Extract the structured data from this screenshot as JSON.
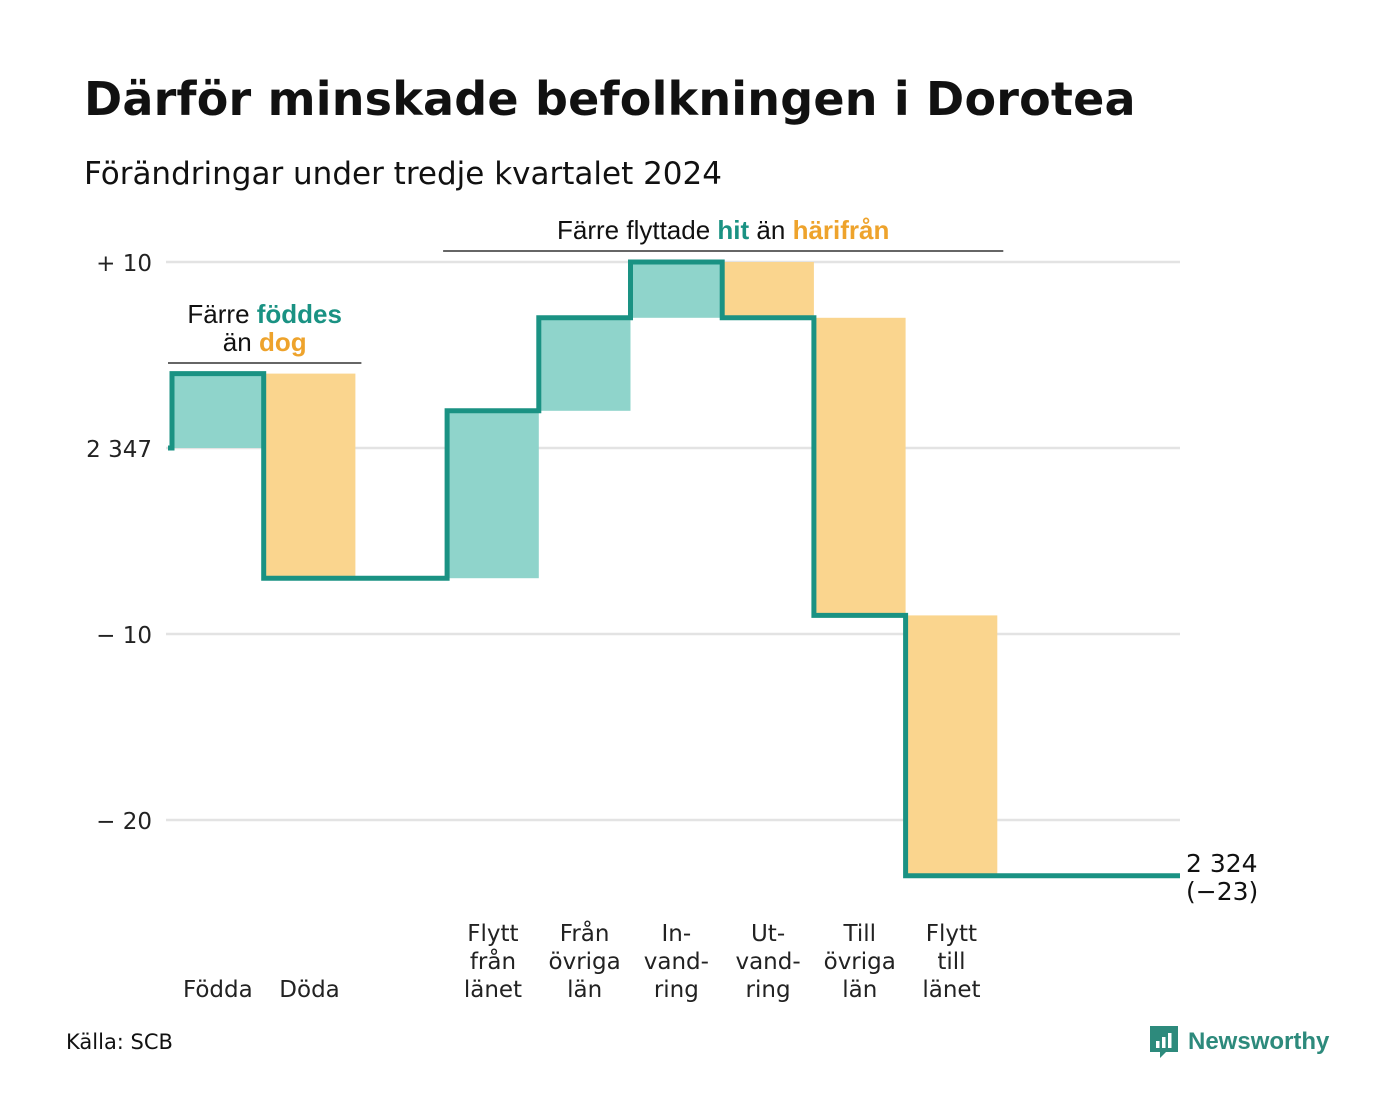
{
  "title": "Därför minskade befolkningen i Dorotea",
  "subtitle": "Förändringar under tredje kvartalet 2024",
  "source": "Källa: SCB",
  "brand": {
    "name": "Newsworthy",
    "icon": "newsworthy-logo-icon",
    "color": "#2d8a7c"
  },
  "chart_data": {
    "type": "waterfall",
    "start_value": 2347,
    "end_value": 2324,
    "end_label": "2 324",
    "end_change_label": "(−23)",
    "y_ticks": [
      {
        "value": 10,
        "label": "+ 10"
      },
      {
        "value": 0,
        "label": "2 347"
      },
      {
        "value": -10,
        "label": "− 10"
      },
      {
        "value": -20,
        "label": "− 20"
      }
    ],
    "ylim": [
      -24,
      10
    ],
    "grid": true,
    "colors": {
      "increase": "#8fd4cb",
      "decrease": "#fad58e",
      "line": "#1a9283",
      "increase_text": "#1a9283",
      "decrease_text": "#eea32c"
    },
    "steps": [
      {
        "label_lines": [
          "Födda"
        ],
        "change": 4,
        "kind": "increase"
      },
      {
        "label_lines": [
          "Döda"
        ],
        "change": -11,
        "kind": "decrease"
      },
      {
        "label_lines": [],
        "change": 0,
        "kind": "gap"
      },
      {
        "label_lines": [
          "Flytt",
          "från",
          "länet"
        ],
        "change": 9,
        "kind": "increase"
      },
      {
        "label_lines": [
          "Från",
          "övriga",
          "län"
        ],
        "change": 5,
        "kind": "increase"
      },
      {
        "label_lines": [
          "In-",
          "vand-",
          "ring"
        ],
        "change": 3,
        "kind": "increase"
      },
      {
        "label_lines": [
          "Ut-",
          "vand-",
          "ring"
        ],
        "change": -3,
        "kind": "decrease"
      },
      {
        "label_lines": [
          "Till",
          "övriga",
          "län"
        ],
        "change": -16,
        "kind": "decrease"
      },
      {
        "label_lines": [
          "Flytt",
          "till",
          "länet"
        ],
        "change": -14,
        "kind": "decrease"
      }
    ],
    "annotations": [
      {
        "lines": [
          [
            {
              "text": "Färre ",
              "style": "plain"
            },
            {
              "text": "föddes",
              "style": "increase"
            }
          ],
          [
            {
              "text": "än ",
              "style": "plain"
            },
            {
              "text": "dog",
              "style": "decrease"
            }
          ]
        ],
        "span": [
          0,
          1
        ]
      },
      {
        "lines": [
          [
            {
              "text": "Färre flyttade ",
              "style": "plain"
            },
            {
              "text": "hit",
              "style": "increase"
            },
            {
              "text": " än ",
              "style": "plain"
            },
            {
              "text": "härifrån",
              "style": "decrease"
            }
          ]
        ],
        "span": [
          3,
          8
        ]
      }
    ]
  }
}
